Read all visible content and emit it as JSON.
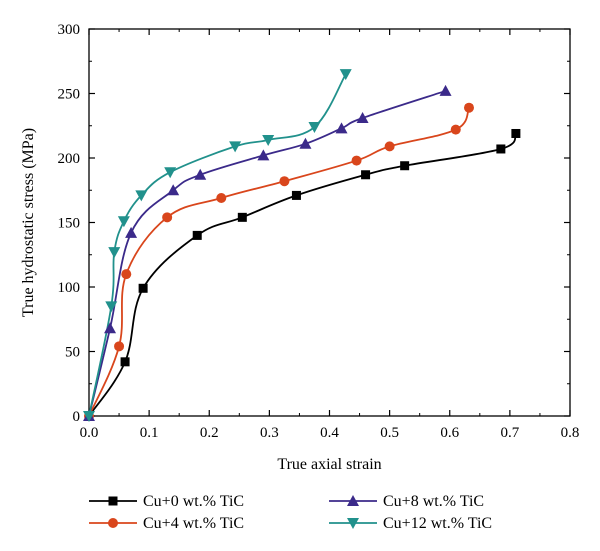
{
  "chart_data": {
    "type": "line",
    "xlabel": "True axial strain",
    "ylabel": "True hydrostatic stress (MPa)",
    "xlim": [
      0.0,
      0.8
    ],
    "ylim": [
      0,
      300
    ],
    "xticks": [
      "0.0",
      "0.1",
      "0.2",
      "0.3",
      "0.4",
      "0.5",
      "0.6",
      "0.7",
      "0.8"
    ],
    "yticks": [
      "0",
      "50",
      "100",
      "150",
      "200",
      "250",
      "300"
    ],
    "grid": false,
    "legend_position": "bottom",
    "series": [
      {
        "name": "Cu+0 wt.% TiC",
        "color": "#000000",
        "marker": "square",
        "x": [
          0.0,
          0.06,
          0.09,
          0.18,
          0.255,
          0.345,
          0.46,
          0.525,
          0.685,
          0.71
        ],
        "y": [
          0,
          42,
          99,
          140,
          154,
          171,
          187,
          194,
          207,
          219
        ]
      },
      {
        "name": "Cu+4 wt.% TiC",
        "color": "#d9461c",
        "marker": "circle",
        "x": [
          0.0,
          0.05,
          0.062,
          0.13,
          0.22,
          0.325,
          0.445,
          0.5,
          0.61,
          0.632
        ],
        "y": [
          0,
          54,
          110,
          154,
          169,
          182,
          198,
          209,
          222,
          239
        ]
      },
      {
        "name": "Cu+8 wt.% TiC",
        "color": "#3b2a8a",
        "marker": "triangle-up",
        "x": [
          0.0,
          0.035,
          0.07,
          0.14,
          0.185,
          0.29,
          0.36,
          0.42,
          0.455,
          0.593
        ],
        "y": [
          0,
          68,
          142,
          175,
          187,
          202,
          211,
          223,
          231,
          252
        ]
      },
      {
        "name": "Cu+12 wt.% TiC",
        "color": "#21918c",
        "marker": "triangle-down",
        "x": [
          0.0,
          0.037,
          0.042,
          0.058,
          0.087,
          0.135,
          0.243,
          0.298,
          0.375,
          0.427
        ],
        "y": [
          0,
          85,
          127,
          151,
          171,
          189,
          209,
          214,
          224,
          265
        ]
      }
    ]
  }
}
